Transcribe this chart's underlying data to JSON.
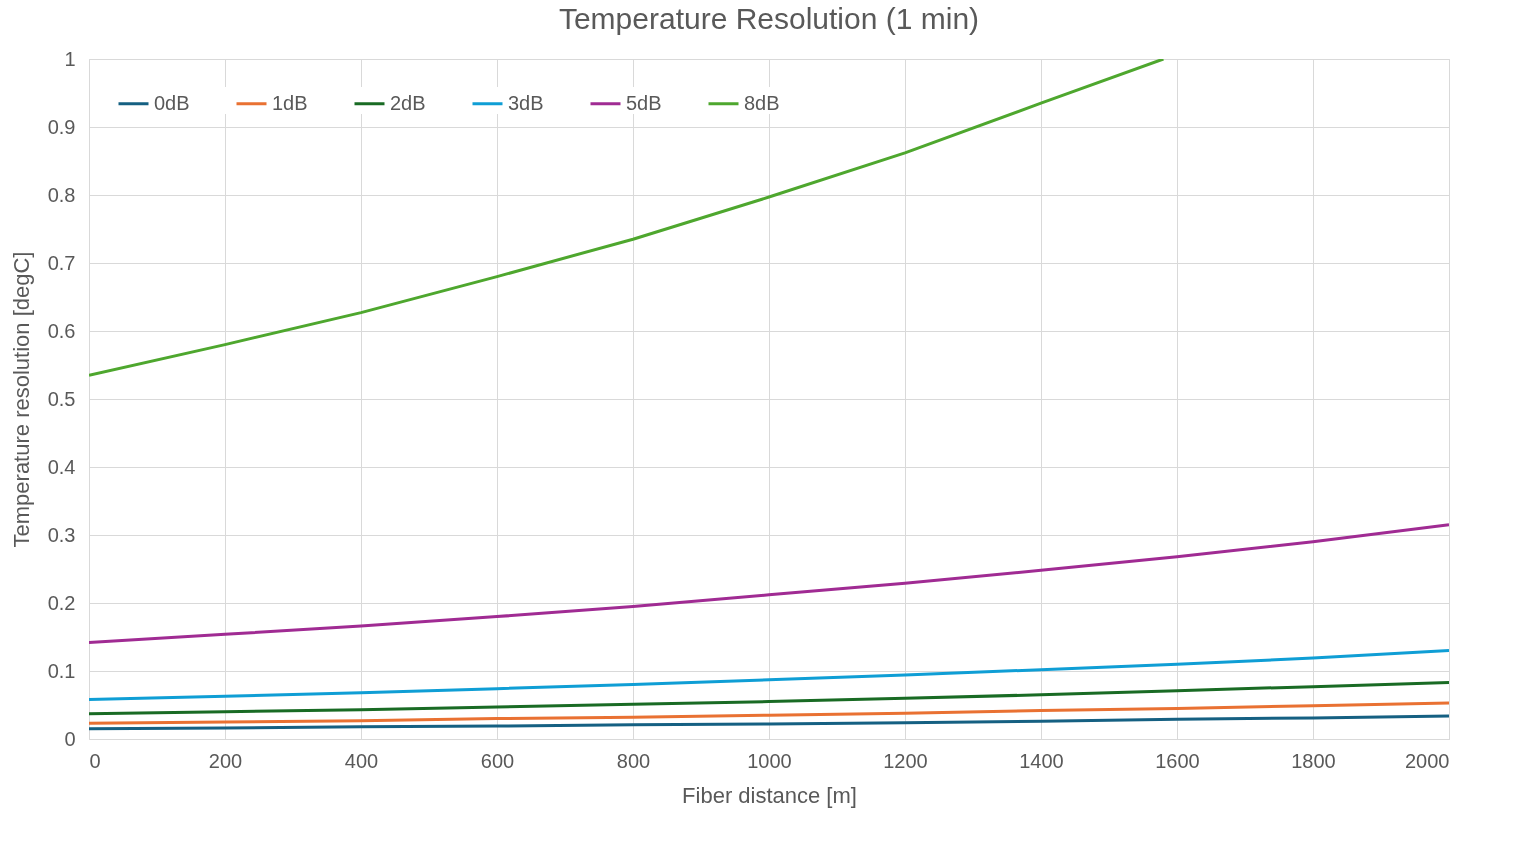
{
  "chart_data": {
    "type": "line",
    "title": "Temperature Resolution (1 min)",
    "xlabel": "Fiber distance [m]",
    "ylabel": "Temperature resolution [degC]",
    "x": [
      0,
      200,
      400,
      600,
      800,
      1000,
      1200,
      1400,
      1600,
      1800,
      2000
    ],
    "series": [
      {
        "name": "0dB",
        "color": "#156082",
        "values": [
          0.015,
          0.016,
          0.018,
          0.019,
          0.021,
          0.022,
          0.024,
          0.026,
          0.029,
          0.031,
          0.034
        ]
      },
      {
        "name": "1dB",
        "color": "#e97132",
        "values": [
          0.023,
          0.025,
          0.027,
          0.03,
          0.032,
          0.035,
          0.038,
          0.042,
          0.045,
          0.049,
          0.053
        ]
      },
      {
        "name": "2dB",
        "color": "#196b24",
        "values": [
          0.037,
          0.04,
          0.043,
          0.047,
          0.051,
          0.055,
          0.06,
          0.065,
          0.071,
          0.077,
          0.083
        ]
      },
      {
        "name": "3dB",
        "color": "#0f9ed5",
        "values": [
          0.058,
          0.063,
          0.068,
          0.074,
          0.08,
          0.087,
          0.094,
          0.102,
          0.11,
          0.119,
          0.13
        ]
      },
      {
        "name": "5dB",
        "color": "#a02b93",
        "values": [
          0.142,
          0.154,
          0.166,
          0.18,
          0.195,
          0.212,
          0.229,
          0.248,
          0.268,
          0.29,
          0.315
        ]
      },
      {
        "name": "8dB",
        "color": "#4ea72e",
        "x": [
          0,
          200,
          400,
          600,
          800,
          1000,
          1200,
          1400,
          1580
        ],
        "values": [
          0.535,
          0.58,
          0.627,
          0.68,
          0.735,
          0.797,
          0.862,
          0.935,
          1.0
        ]
      }
    ],
    "xlim": [
      0,
      2000
    ],
    "xticks": [
      0,
      200,
      400,
      600,
      800,
      1000,
      1200,
      1400,
      1600,
      1800,
      2000
    ],
    "ylim": [
      0,
      1
    ],
    "yticks": [
      0,
      0.1,
      0.2,
      0.3,
      0.4,
      0.5,
      0.6,
      0.7,
      0.8,
      0.9,
      1
    ],
    "grid": true,
    "legend": "top left",
    "line_style": "solid",
    "marker": "none"
  }
}
